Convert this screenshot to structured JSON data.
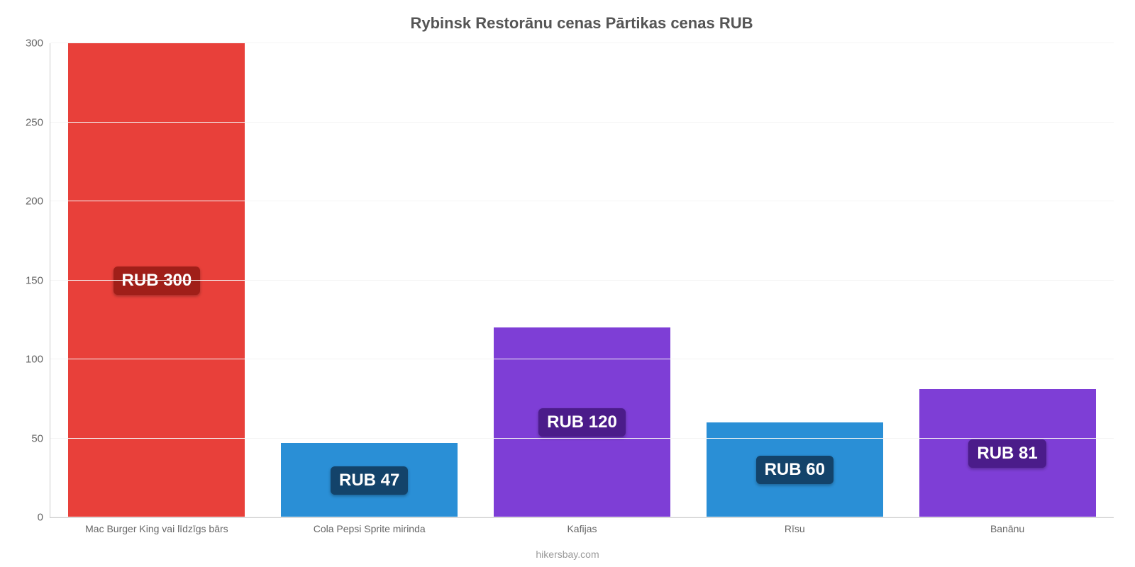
{
  "chart": {
    "type": "bar",
    "title": "Rybinsk Restorānu cenas Pārtikas cenas RUB",
    "title_fontsize": 22,
    "title_color": "#555555",
    "background_color": "#ffffff",
    "grid_color": "#f4f4f4",
    "axis_color": "#cccccc",
    "tick_label_color": "#666666",
    "tick_label_fontsize": 15,
    "x_label_fontsize": 14,
    "value_label_fontsize": 24,
    "value_label_text_color": "#ffffff",
    "bar_width_ratio": 0.83,
    "ylim": [
      0,
      300
    ],
    "ytick_step": 50,
    "yticks": [
      0,
      50,
      100,
      150,
      200,
      250,
      300
    ],
    "categories": [
      "Mac Burger King vai līdzīgs bārs",
      "Cola Pepsi Sprite mirinda",
      "Kafijas",
      "Rīsu",
      "Banānu"
    ],
    "values": [
      300,
      47,
      120,
      60,
      81
    ],
    "value_labels": [
      "RUB 300",
      "RUB 47",
      "RUB 120",
      "RUB 60",
      "RUB 81"
    ],
    "bar_colors": [
      "#e8403a",
      "#2a8fd6",
      "#7e3ed6",
      "#2a8fd6",
      "#7e3ed6"
    ],
    "badge_bg_colors": [
      "#a01f19",
      "#13436a",
      "#4b1c8a",
      "#13436a",
      "#4b1c8a"
    ],
    "footer": "hikersbay.com",
    "footer_color": "#999999",
    "footer_fontsize": 14
  }
}
